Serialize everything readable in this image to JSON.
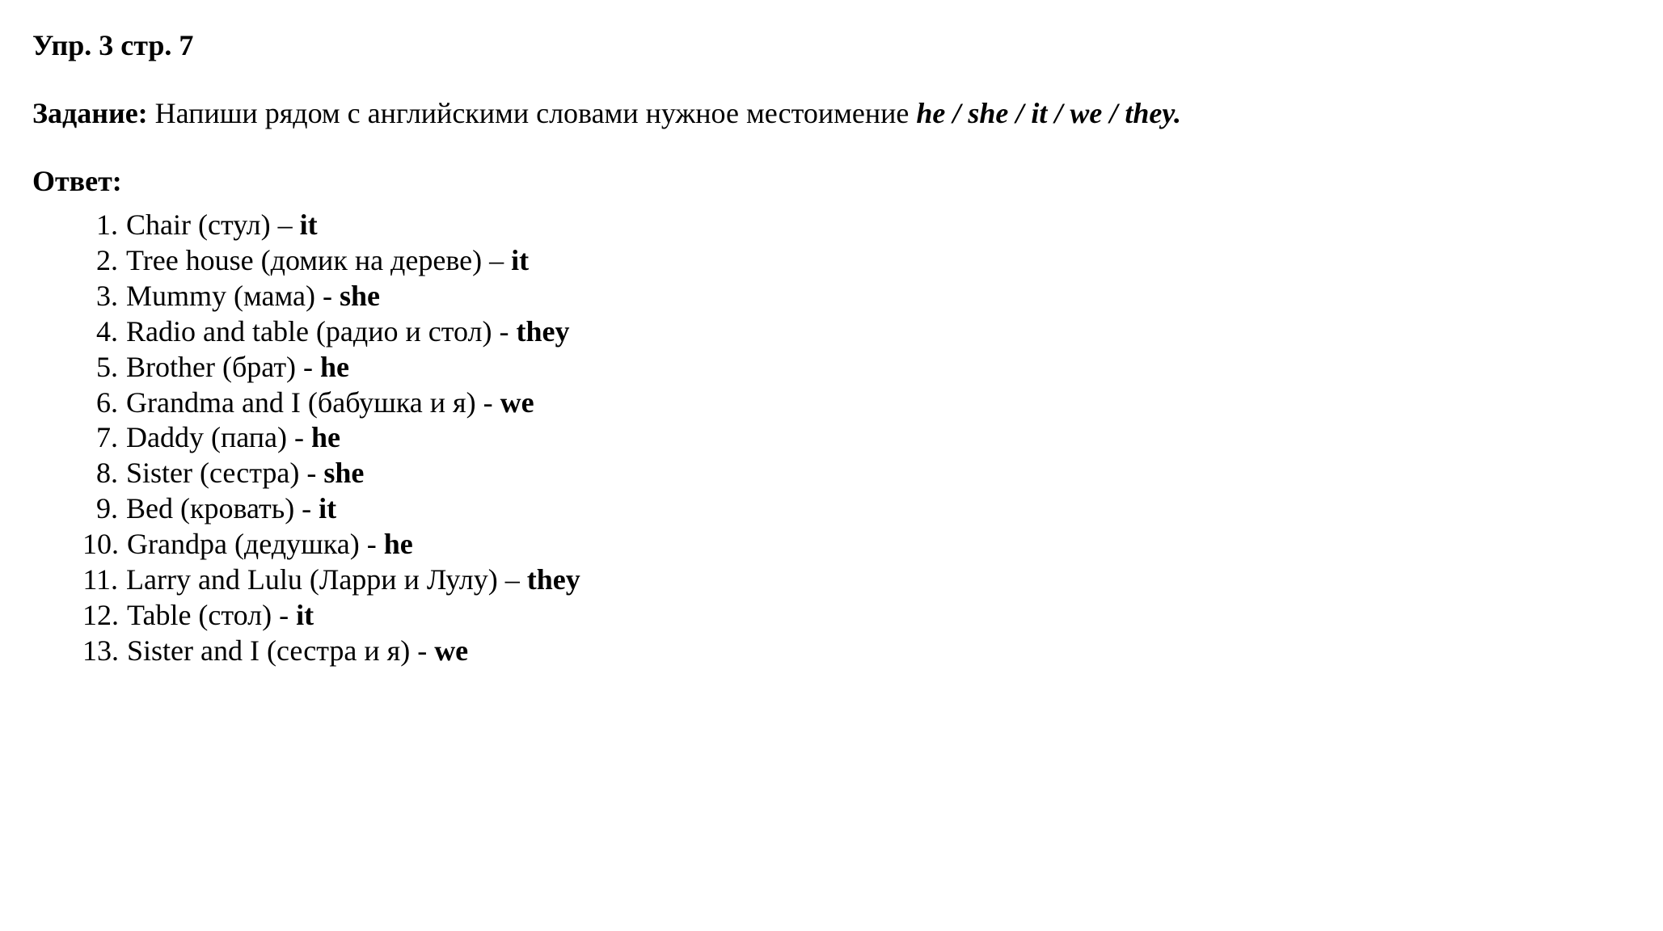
{
  "header": {
    "exercise_label": "Упр. 3 стр. 7"
  },
  "task": {
    "label": "Задание:",
    "text": " Напиши рядом с английскими словами нужное местоимение ",
    "pronouns": "he / she / it / we / they."
  },
  "answer": {
    "label": "Ответ:",
    "items": [
      {
        "num": "1.",
        "word": "Chair (стул) – ",
        "pronoun": "it"
      },
      {
        "num": "2.",
        "word": "Tree house (домик на дереве) – ",
        "pronoun": "it"
      },
      {
        "num": "3.",
        "word": "Mummy (мама) - ",
        "pronoun": "she"
      },
      {
        "num": "4.",
        "word": "Radio and table (радио и стол) - ",
        "pronoun": "they"
      },
      {
        "num": "5.",
        "word": "Brother (брат) - ",
        "pronoun": "he"
      },
      {
        "num": "6.",
        "word": "Grandma and I (бабушка и я) - ",
        "pronoun": "we"
      },
      {
        "num": "7.",
        "word": "Daddy (папа) - ",
        "pronoun": "he"
      },
      {
        "num": "8.",
        "word": "Sister (сестра) - ",
        "pronoun": "she"
      },
      {
        "num": "9.",
        "word": "Bed (кровать) - ",
        "pronoun": "it"
      },
      {
        "num": "10.",
        "word": "Grandpa (дедушка) - ",
        "pronoun": "he"
      },
      {
        "num": "11.",
        "word": "Larry and Lulu (Ларри и Лулу) – ",
        "pronoun": "they"
      },
      {
        "num": "12.",
        "word": "Table (стол) - ",
        "pronoun": "it"
      },
      {
        "num": "13.",
        "word": "Sister and I (сестра и я) - ",
        "pronoun": "we"
      }
    ]
  },
  "styling": {
    "background_color": "#ffffff",
    "text_color": "#000000",
    "font_family": "Georgia, Times New Roman, serif",
    "base_fontsize": 36,
    "line_height": 1.22,
    "header_fontweight": "bold",
    "task_label_fontweight": "bold",
    "pronoun_fontweight": "bold",
    "pronouns_list_fontstyle": "italic",
    "pronouns_list_fontweight": "bold",
    "body_padding": "35px 40px",
    "list_indent": 62,
    "number_column_width": 54
  }
}
